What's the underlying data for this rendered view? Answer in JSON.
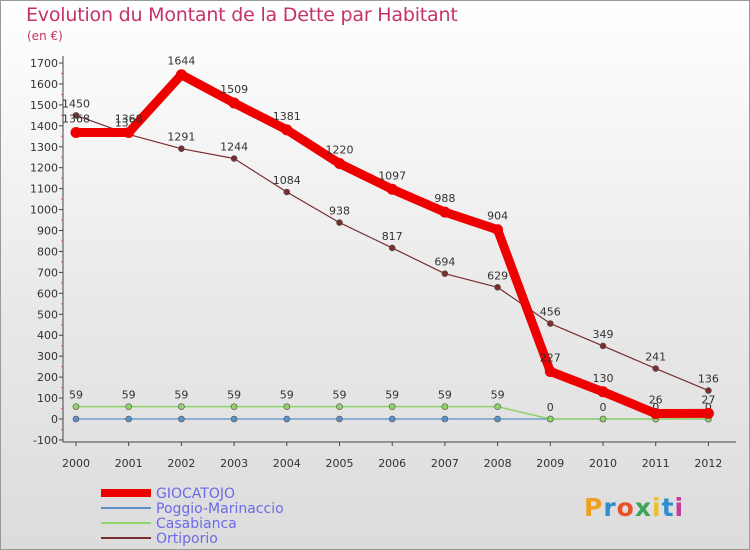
{
  "title": "Evolution du Montant de la Dette par Habitant",
  "subtitle": "(en €)",
  "logo": {
    "text": "Proxiti",
    "letter_colors": [
      "#f0a020",
      "#2e8fd0",
      "#e8502a",
      "#3aa55a",
      "#e8c02a",
      "#2e8fd0",
      "#c43a9a"
    ]
  },
  "chart_data": {
    "type": "line",
    "title": "Evolution du Montant de la Dette par Habitant",
    "subtitle": "(en €)",
    "x": [
      "2000",
      "2001",
      "2002",
      "2003",
      "2004",
      "2005",
      "2006",
      "2007",
      "2008",
      "2009",
      "2010",
      "2011",
      "2012"
    ],
    "ylim": [
      -100,
      1700
    ],
    "yticks": [
      -100,
      0,
      100,
      200,
      300,
      400,
      500,
      600,
      700,
      800,
      900,
      1000,
      1100,
      1200,
      1300,
      1400,
      1500,
      1600,
      1700
    ],
    "grid": false,
    "legend": "bottom-left",
    "series": [
      {
        "name": "GIOCATOJO",
        "color": "#ee0000",
        "values": [
          1368,
          1368,
          1644,
          1509,
          1381,
          1220,
          1097,
          988,
          904,
          227,
          130,
          26,
          27
        ],
        "labels": [
          "1368",
          "1368",
          "1644",
          "1509",
          "1381",
          "1220",
          "1097",
          "988",
          "904",
          "227",
          "130",
          "26",
          "27"
        ]
      },
      {
        "name": "Poggio-Marinaccio",
        "color": "#5b8fc7",
        "values": [
          0,
          0,
          0,
          0,
          0,
          0,
          0,
          0,
          0,
          0,
          0,
          0,
          0
        ],
        "labels": []
      },
      {
        "name": "Casabianca",
        "color": "#8fd36a",
        "values": [
          59,
          59,
          59,
          59,
          59,
          59,
          59,
          59,
          59,
          0,
          0,
          0,
          0
        ],
        "labels": [
          "59",
          "59",
          "59",
          "59",
          "59",
          "59",
          "59",
          "59",
          "59",
          "0",
          "0",
          "0",
          "0"
        ]
      },
      {
        "name": "Ortiporio",
        "color": "#7a2e2e",
        "values": [
          1450,
          1359,
          1291,
          1244,
          1084,
          938,
          817,
          694,
          629,
          456,
          349,
          241,
          136
        ],
        "labels": [
          "1450",
          "1359",
          "1291",
          "1244",
          "1084",
          "938",
          "817",
          "694",
          "629",
          "456",
          "349",
          "241",
          "136"
        ]
      }
    ]
  }
}
